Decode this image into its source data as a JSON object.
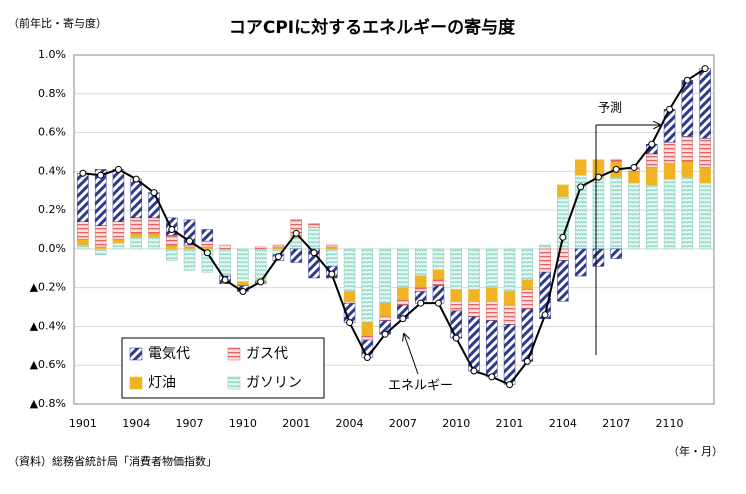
{
  "chart_data": {
    "type": "stacked_bar_line",
    "title": "コアCPIに対するエネルギーの寄与度",
    "y_axis_label": "（前年比・寄与度）",
    "x_axis_label": "（年・月）",
    "source": "（資料）総務省統計局「消費者物価指数」",
    "forecast_label": "予測",
    "categories": [
      "1901",
      null,
      null,
      "1904",
      null,
      null,
      "1907",
      null,
      null,
      "1910",
      null,
      null,
      "2001",
      null,
      null,
      "2004",
      null,
      null,
      "2007",
      null,
      null,
      "2010",
      null,
      null,
      "2101",
      null,
      null,
      "2104",
      null,
      null,
      "2107",
      null,
      null,
      "2110",
      null,
      null
    ],
    "series": [
      {
        "name": "電気代",
        "color": "#2e3a8c",
        "values": [
          0.25,
          0.29,
          0.27,
          0.2,
          0.13,
          0.09,
          0.13,
          0.06,
          -0.04,
          -0.03,
          -0.01,
          -0.03,
          -0.07,
          -0.15,
          -0.06,
          -0.1,
          -0.09,
          -0.07,
          -0.07,
          -0.06,
          -0.09,
          -0.14,
          -0.28,
          -0.29,
          -0.31,
          -0.27,
          -0.24,
          -0.21,
          -0.14,
          -0.09,
          -0.05,
          0.0,
          0.05,
          0.17,
          0.29,
          0.36
        ]
      },
      {
        "name": "ガス代",
        "color": "#e06666",
        "values": [
          0.09,
          0.11,
          0.09,
          0.08,
          0.08,
          0.05,
          0.01,
          0.03,
          0.02,
          0.0,
          0.01,
          0.01,
          0.08,
          0.02,
          0.01,
          -0.01,
          -0.02,
          -0.02,
          -0.03,
          -0.02,
          -0.03,
          -0.05,
          -0.08,
          -0.1,
          -0.1,
          -0.1,
          -0.12,
          -0.06,
          0.0,
          0.0,
          0.01,
          0.02,
          0.07,
          0.11,
          0.13,
          0.15
        ]
      },
      {
        "name": "灯油",
        "color": "#f0b323",
        "values": [
          0.03,
          0.01,
          0.02,
          0.02,
          0.02,
          0.02,
          0.01,
          0.01,
          0.0,
          -0.02,
          -0.01,
          0.01,
          0.01,
          0.0,
          0.01,
          -0.05,
          -0.07,
          -0.07,
          -0.06,
          -0.06,
          -0.05,
          -0.06,
          -0.06,
          -0.07,
          -0.07,
          -0.05,
          0.0,
          0.06,
          0.08,
          0.09,
          0.08,
          0.06,
          0.09,
          0.08,
          0.08,
          0.08
        ]
      },
      {
        "name": "ガソリン",
        "color": "#7fcdbb",
        "values": [
          0.02,
          -0.03,
          0.03,
          0.06,
          0.06,
          -0.06,
          -0.11,
          -0.12,
          -0.14,
          -0.17,
          -0.16,
          -0.03,
          0.06,
          0.11,
          -0.09,
          -0.22,
          -0.38,
          -0.28,
          -0.2,
          -0.14,
          -0.11,
          -0.21,
          -0.21,
          -0.2,
          -0.22,
          -0.16,
          0.02,
          0.27,
          0.38,
          0.37,
          0.37,
          0.34,
          0.33,
          0.36,
          0.37,
          0.34
        ]
      }
    ],
    "line": {
      "name": "エネルギー",
      "color": "#000000",
      "values": [
        0.39,
        0.38,
        0.41,
        0.36,
        0.29,
        0.1,
        0.04,
        -0.02,
        -0.16,
        -0.22,
        -0.17,
        -0.04,
        0.08,
        -0.02,
        -0.13,
        -0.38,
        -0.56,
        -0.44,
        -0.36,
        -0.28,
        -0.28,
        -0.46,
        -0.63,
        -0.66,
        -0.7,
        -0.58,
        -0.34,
        0.06,
        0.32,
        0.37,
        0.41,
        0.42,
        0.54,
        0.72,
        0.87,
        0.93
      ]
    },
    "ylim": [
      -0.8,
      1.0
    ],
    "yticks": [
      {
        "value": 1.0,
        "label": "1.0%"
      },
      {
        "value": 0.8,
        "label": "0.8%"
      },
      {
        "value": 0.6,
        "label": "0.6%"
      },
      {
        "value": 0.4,
        "label": "0.4%"
      },
      {
        "value": 0.2,
        "label": "0.2%"
      },
      {
        "value": 0.0,
        "label": "0.0%"
      },
      {
        "value": -0.2,
        "label": "▲0.2%"
      },
      {
        "value": -0.4,
        "label": "▲0.4%"
      },
      {
        "value": -0.6,
        "label": "▲0.6%"
      },
      {
        "value": -0.8,
        "label": "▲0.8%"
      }
    ],
    "grid": true
  }
}
